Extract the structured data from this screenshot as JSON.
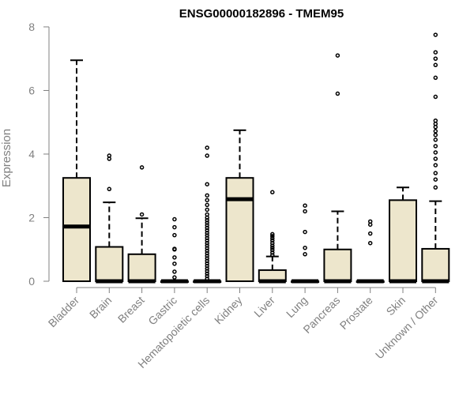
{
  "chart_data": {
    "type": "boxplot",
    "title": "ENSG00000182896 - TMEM95",
    "xlabel": "",
    "ylabel": "Expression",
    "ylim": [
      0,
      8
    ],
    "yticks": [
      "0",
      "2",
      "4",
      "6",
      "8"
    ],
    "grid": false,
    "box_fill": "#ede6cc",
    "box_stroke": "#000000",
    "categories": [
      "Bladder",
      "Brain",
      "Breast",
      "Gastric",
      "Hematopoietic cells",
      "Kidney",
      "Liver",
      "Lung",
      "Pancreas",
      "Prostate",
      "Skin",
      "Unknown / Other"
    ],
    "boxes": [
      {
        "q1": 0,
        "median": 1.72,
        "q3": 3.25,
        "whisker_low": 0,
        "whisker_high": 6.95,
        "outliers": []
      },
      {
        "q1": 0,
        "median": 0,
        "q3": 1.08,
        "whisker_low": 0,
        "whisker_high": 2.48,
        "outliers": [
          2.9,
          3.85,
          3.95
        ]
      },
      {
        "q1": 0,
        "median": 0,
        "q3": 0.85,
        "whisker_low": 0,
        "whisker_high": 1.98,
        "outliers": [
          2.1,
          3.58
        ]
      },
      {
        "q1": 0,
        "median": 0,
        "q3": 0,
        "whisker_low": 0,
        "whisker_high": 0,
        "outliers": [
          0.12,
          0.3,
          0.55,
          0.75,
          1.0,
          1.02,
          1.45,
          1.7,
          1.95
        ]
      },
      {
        "q1": 0,
        "median": 0,
        "q3": 0,
        "whisker_low": 0,
        "whisker_high": 0,
        "outliers": [
          0.08,
          0.16,
          0.24,
          0.32,
          0.4,
          0.48,
          0.56,
          0.64,
          0.72,
          0.8,
          0.88,
          0.96,
          1.04,
          1.12,
          1.2,
          1.28,
          1.36,
          1.44,
          1.52,
          1.6,
          1.68,
          1.76,
          1.84,
          1.92,
          2.0,
          2.1,
          2.25,
          2.4,
          2.55,
          2.7,
          3.05,
          3.95,
          4.2
        ]
      },
      {
        "q1": 0,
        "median": 2.58,
        "q3": 3.25,
        "whisker_low": 0,
        "whisker_high": 4.75,
        "outliers": []
      },
      {
        "q1": 0,
        "median": 0,
        "q3": 0.35,
        "whisker_low": 0,
        "whisker_high": 0.78,
        "outliers": [
          0.82,
          0.9,
          0.98,
          1.05,
          1.12,
          1.2,
          1.28,
          1.35,
          1.42,
          1.48,
          2.8
        ]
      },
      {
        "q1": 0,
        "median": 0,
        "q3": 0,
        "whisker_low": 0,
        "whisker_high": 0,
        "outliers": [
          0.85,
          1.05,
          1.55,
          2.2,
          2.38
        ]
      },
      {
        "q1": 0,
        "median": 0,
        "q3": 1.0,
        "whisker_low": 0,
        "whisker_high": 2.2,
        "outliers": [
          5.9,
          7.1
        ]
      },
      {
        "q1": 0,
        "median": 0,
        "q3": 0,
        "whisker_low": 0,
        "whisker_high": 0,
        "outliers": [
          1.2,
          1.5,
          1.78,
          1.88
        ]
      },
      {
        "q1": 0,
        "median": 0,
        "q3": 2.55,
        "whisker_low": 0,
        "whisker_high": 2.95,
        "outliers": []
      },
      {
        "q1": 0,
        "median": 0,
        "q3": 1.02,
        "whisker_low": 0,
        "whisker_high": 2.52,
        "outliers": [
          2.95,
          3.2,
          3.4,
          3.65,
          3.85,
          4.05,
          4.25,
          4.45,
          4.6,
          4.72,
          4.85,
          4.95,
          5.05,
          5.8,
          6.4,
          6.8,
          7.0,
          7.2,
          7.75
        ]
      }
    ]
  }
}
